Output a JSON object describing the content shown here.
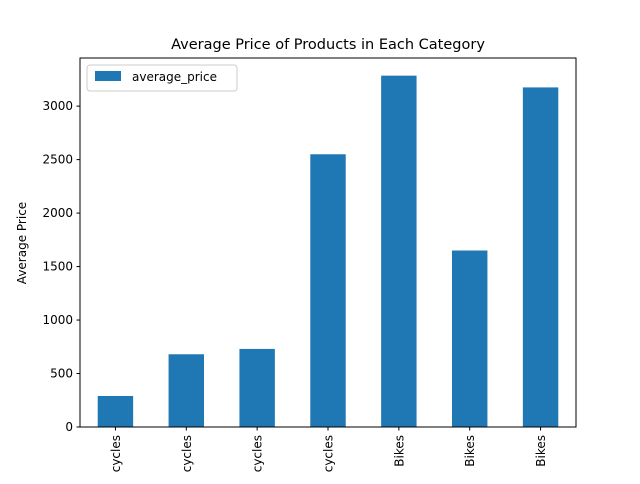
{
  "chart_data": {
    "type": "bar",
    "title": "Average Price of Products in Each Category",
    "xlabel": "",
    "ylabel": "Average Price",
    "categories": [
      "cycles",
      "cycles",
      "cycles",
      "cycles",
      "Bikes",
      "Bikes",
      "Bikes"
    ],
    "series": [
      {
        "name": "average_price",
        "values": [
          290,
          680,
          730,
          2550,
          3285,
          1650,
          3175
        ]
      }
    ],
    "ylim": [
      0,
      3450
    ],
    "yticks": [
      0,
      500,
      1000,
      1500,
      2000,
      2500,
      3000
    ],
    "legend_position": "top-left",
    "grid": false,
    "colors": {
      "bar": "#1f77b4"
    }
  }
}
